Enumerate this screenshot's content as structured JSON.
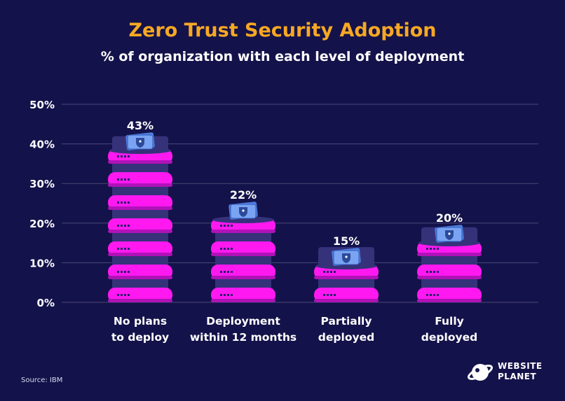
{
  "header": {
    "title": "Zero Trust Security Adoption",
    "subtitle": "% of organization with each level of deployment"
  },
  "chart_data": {
    "type": "bar",
    "categories": [
      [
        "No plans",
        "to deploy"
      ],
      [
        "Deployment",
        "within 12 months"
      ],
      [
        "Partially",
        "deployed"
      ],
      [
        "Fully",
        "deployed"
      ]
    ],
    "values": [
      43,
      22,
      15,
      20
    ],
    "value_labels": [
      "43%",
      "22%",
      "15%",
      "20%"
    ],
    "ylim": [
      0,
      50
    ],
    "y_ticks": [
      0,
      10,
      20,
      30,
      40,
      50
    ],
    "y_tick_labels": [
      "0%",
      "10%",
      "20%",
      "30%",
      "40%",
      "50%"
    ],
    "grid": true,
    "colors": {
      "disk": "#ff19f0",
      "disk_shadow": "#b012b8",
      "disk_body": "#35327a",
      "dots": "#2a1d6e",
      "badge": "#4f7ee0",
      "grid": "#4a4878"
    }
  },
  "footer": {
    "source": "Source: IBM",
    "brand_line1": "WEBSITE",
    "brand_line2": "PLANET",
    "brand_icon": "planet-icon"
  }
}
